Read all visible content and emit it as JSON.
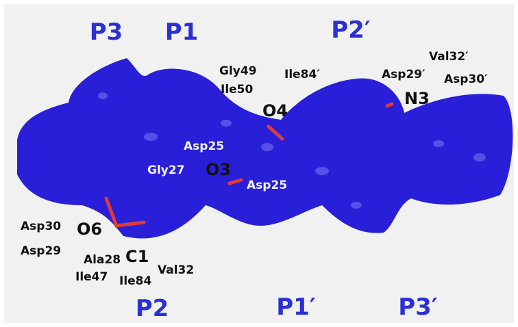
{
  "pockets": [
    "P3",
    "P1",
    "P2′",
    "P2",
    "P1′",
    "P3′"
  ],
  "atoms": [
    "O4",
    "N3",
    "O3",
    "O6",
    "C1"
  ],
  "residues": [
    "Gly49",
    "Ile50",
    "Ile84′",
    "Val32′",
    "Asp29′",
    "Asp30′",
    "Asp25",
    "Gly27",
    "Asp25",
    "Asp30",
    "Asp29",
    "Ala28",
    "Ile47",
    "Ile84",
    "Val32"
  ]
}
